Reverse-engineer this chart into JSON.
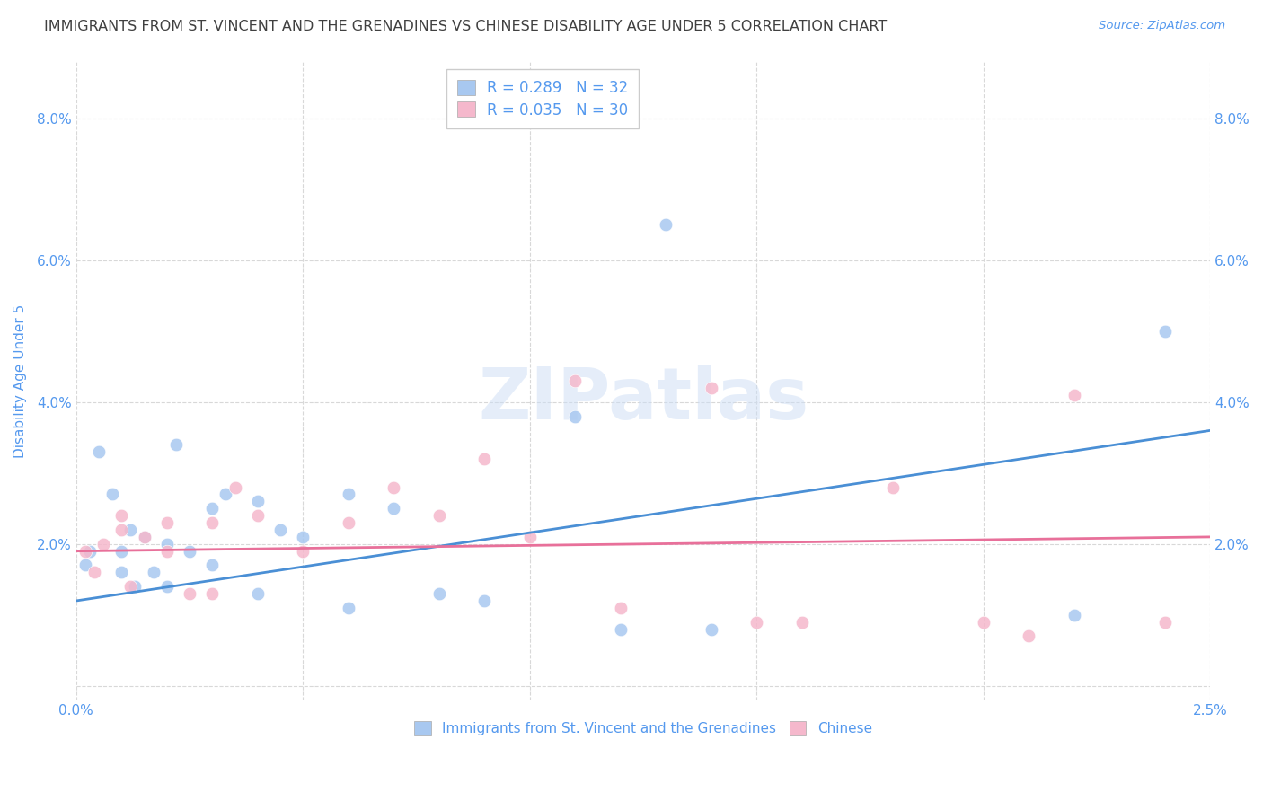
{
  "title": "IMMIGRANTS FROM ST. VINCENT AND THE GRENADINES VS CHINESE DISABILITY AGE UNDER 5 CORRELATION CHART",
  "source": "Source: ZipAtlas.com",
  "ylabel": "Disability Age Under 5",
  "y_ticks": [
    0.0,
    0.02,
    0.04,
    0.06,
    0.08
  ],
  "y_tick_labels": [
    "",
    "2.0%",
    "4.0%",
    "6.0%",
    "8.0%"
  ],
  "x_range": [
    0.0,
    0.025
  ],
  "y_range": [
    -0.002,
    0.088
  ],
  "blue_scatter_x": [
    0.0002,
    0.0003,
    0.0005,
    0.0008,
    0.001,
    0.001,
    0.0012,
    0.0013,
    0.0015,
    0.0017,
    0.002,
    0.002,
    0.0022,
    0.0025,
    0.003,
    0.003,
    0.0033,
    0.004,
    0.004,
    0.0045,
    0.005,
    0.006,
    0.006,
    0.007,
    0.008,
    0.009,
    0.011,
    0.012,
    0.013,
    0.014,
    0.022,
    0.024
  ],
  "blue_scatter_y": [
    0.017,
    0.019,
    0.033,
    0.027,
    0.016,
    0.019,
    0.022,
    0.014,
    0.021,
    0.016,
    0.02,
    0.014,
    0.034,
    0.019,
    0.025,
    0.017,
    0.027,
    0.026,
    0.013,
    0.022,
    0.021,
    0.011,
    0.027,
    0.025,
    0.013,
    0.012,
    0.038,
    0.008,
    0.065,
    0.008,
    0.01,
    0.05
  ],
  "pink_scatter_x": [
    0.0002,
    0.0004,
    0.0006,
    0.001,
    0.001,
    0.0012,
    0.0015,
    0.002,
    0.002,
    0.0025,
    0.003,
    0.003,
    0.0035,
    0.004,
    0.005,
    0.006,
    0.007,
    0.008,
    0.009,
    0.01,
    0.011,
    0.012,
    0.014,
    0.015,
    0.016,
    0.018,
    0.02,
    0.021,
    0.022,
    0.024
  ],
  "pink_scatter_y": [
    0.019,
    0.016,
    0.02,
    0.022,
    0.024,
    0.014,
    0.021,
    0.023,
    0.019,
    0.013,
    0.023,
    0.013,
    0.028,
    0.024,
    0.019,
    0.023,
    0.028,
    0.024,
    0.032,
    0.021,
    0.043,
    0.011,
    0.042,
    0.009,
    0.009,
    0.028,
    0.009,
    0.007,
    0.041,
    0.009
  ],
  "blue_line_x": [
    0.0,
    0.025
  ],
  "blue_line_y": [
    0.012,
    0.036
  ],
  "pink_line_x": [
    0.0,
    0.025
  ],
  "pink_line_y": [
    0.019,
    0.021
  ],
  "blue_color": "#a8c8f0",
  "pink_color": "#f5b8cc",
  "blue_line_color": "#4a8fd5",
  "pink_line_color": "#e8709a",
  "background_color": "#ffffff",
  "grid_color": "#d8d8d8",
  "title_color": "#404040",
  "axis_label_color": "#5599ee",
  "tick_color": "#5599ee",
  "legend_label_color": "#5599ee",
  "scatter_size": 110,
  "watermark": "ZIPatlas",
  "legend_series": [
    {
      "label": "R = 0.289   N = 32",
      "color": "#a8c8f0"
    },
    {
      "label": "R = 0.035   N = 30",
      "color": "#f5b8cc"
    }
  ],
  "bottom_legend_labels": [
    "Immigrants from St. Vincent and the Grenadines",
    "Chinese"
  ]
}
